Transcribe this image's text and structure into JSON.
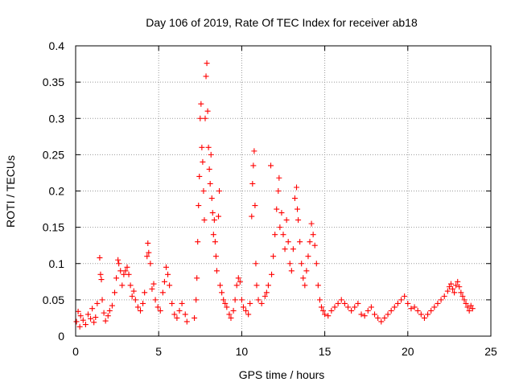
{
  "chart_data": {
    "type": "scatter",
    "title": "Day 106 of 2019, Rate Of TEC Index for receiver ab18",
    "xlabel": "GPS time / hours",
    "ylabel": "ROTI / TECUs",
    "xlim": [
      0,
      25
    ],
    "ylim": [
      0,
      0.4
    ],
    "xticks": [
      0,
      5,
      10,
      15,
      20,
      25
    ],
    "xtick_labels": [
      "0",
      "5",
      "10",
      "15",
      "20",
      "25"
    ],
    "yticks": [
      0,
      0.05,
      0.1,
      0.15,
      0.2,
      0.25,
      0.3,
      0.35,
      0.4
    ],
    "ytick_labels": [
      "0",
      "0.05",
      "0.1",
      "0.15",
      "0.2",
      "0.25",
      "0.3",
      "0.35",
      "0.4"
    ],
    "grid": true,
    "grid_style": "dotted",
    "marker": "+",
    "marker_color": "#ff0000",
    "series": [
      {
        "points": [
          [
            0.05,
            0.02
          ],
          [
            0.15,
            0.034
          ],
          [
            0.25,
            0.013
          ],
          [
            0.3,
            0.028
          ],
          [
            0.45,
            0.022
          ],
          [
            0.6,
            0.016
          ],
          [
            0.75,
            0.03
          ],
          [
            0.9,
            0.024
          ],
          [
            1.0,
            0.038
          ],
          [
            1.1,
            0.019
          ],
          [
            1.2,
            0.026
          ],
          [
            1.3,
            0.045
          ],
          [
            1.45,
            0.108
          ],
          [
            1.5,
            0.085
          ],
          [
            1.55,
            0.078
          ],
          [
            1.6,
            0.05
          ],
          [
            1.7,
            0.032
          ],
          [
            1.8,
            0.021
          ],
          [
            1.95,
            0.028
          ],
          [
            2.05,
            0.035
          ],
          [
            2.2,
            0.042
          ],
          [
            2.35,
            0.06
          ],
          [
            2.45,
            0.08
          ],
          [
            2.55,
            0.105
          ],
          [
            2.6,
            0.1
          ],
          [
            2.7,
            0.09
          ],
          [
            2.8,
            0.07
          ],
          [
            2.9,
            0.085
          ],
          [
            3.0,
            0.09
          ],
          [
            3.1,
            0.095
          ],
          [
            3.2,
            0.085
          ],
          [
            3.3,
            0.07
          ],
          [
            3.4,
            0.055
          ],
          [
            3.5,
            0.062
          ],
          [
            3.6,
            0.05
          ],
          [
            3.75,
            0.04
          ],
          [
            3.9,
            0.035
          ],
          [
            4.05,
            0.045
          ],
          [
            4.15,
            0.06
          ],
          [
            4.3,
            0.11
          ],
          [
            4.35,
            0.128
          ],
          [
            4.4,
            0.115
          ],
          [
            4.5,
            0.1
          ],
          [
            4.6,
            0.065
          ],
          [
            4.7,
            0.072
          ],
          [
            4.8,
            0.05
          ],
          [
            4.95,
            0.04
          ],
          [
            5.1,
            0.035
          ],
          [
            5.25,
            0.06
          ],
          [
            5.35,
            0.075
          ],
          [
            5.45,
            0.095
          ],
          [
            5.55,
            0.085
          ],
          [
            5.65,
            0.07
          ],
          [
            5.8,
            0.045
          ],
          [
            5.95,
            0.03
          ],
          [
            6.1,
            0.025
          ],
          [
            6.25,
            0.035
          ],
          [
            6.4,
            0.045
          ],
          [
            6.6,
            0.03
          ],
          [
            6.7,
            0.02
          ],
          [
            7.15,
            0.025
          ],
          [
            7.25,
            0.05
          ],
          [
            7.3,
            0.08
          ],
          [
            7.35,
            0.13
          ],
          [
            7.4,
            0.18
          ],
          [
            7.45,
            0.22
          ],
          [
            7.5,
            0.3
          ],
          [
            7.55,
            0.32
          ],
          [
            7.6,
            0.26
          ],
          [
            7.65,
            0.24
          ],
          [
            7.7,
            0.2
          ],
          [
            7.75,
            0.16
          ],
          [
            7.8,
            0.3
          ],
          [
            7.85,
            0.358
          ],
          [
            7.9,
            0.376
          ],
          [
            7.95,
            0.31
          ],
          [
            8.0,
            0.26
          ],
          [
            8.05,
            0.23
          ],
          [
            8.1,
            0.21
          ],
          [
            8.15,
            0.25
          ],
          [
            8.2,
            0.19
          ],
          [
            8.25,
            0.17
          ],
          [
            8.3,
            0.14
          ],
          [
            8.35,
            0.16
          ],
          [
            8.4,
            0.13
          ],
          [
            8.45,
            0.11
          ],
          [
            8.5,
            0.09
          ],
          [
            8.6,
            0.165
          ],
          [
            8.65,
            0.2
          ],
          [
            8.7,
            0.07
          ],
          [
            8.8,
            0.06
          ],
          [
            8.9,
            0.05
          ],
          [
            9.0,
            0.045
          ],
          [
            9.1,
            0.04
          ],
          [
            9.25,
            0.03
          ],
          [
            9.35,
            0.025
          ],
          [
            9.5,
            0.035
          ],
          [
            9.6,
            0.05
          ],
          [
            9.7,
            0.07
          ],
          [
            9.8,
            0.08
          ],
          [
            9.9,
            0.075
          ],
          [
            10.0,
            0.05
          ],
          [
            10.1,
            0.04
          ],
          [
            10.25,
            0.035
          ],
          [
            10.4,
            0.03
          ],
          [
            10.5,
            0.045
          ],
          [
            10.6,
            0.165
          ],
          [
            10.65,
            0.21
          ],
          [
            10.7,
            0.235
          ],
          [
            10.75,
            0.255
          ],
          [
            10.8,
            0.18
          ],
          [
            10.85,
            0.1
          ],
          [
            10.9,
            0.07
          ],
          [
            11.0,
            0.05
          ],
          [
            11.2,
            0.045
          ],
          [
            11.4,
            0.055
          ],
          [
            11.5,
            0.06
          ],
          [
            11.6,
            0.07
          ],
          [
            11.75,
            0.235
          ],
          [
            11.8,
            0.085
          ],
          [
            11.9,
            0.11
          ],
          [
            12.0,
            0.14
          ],
          [
            12.1,
            0.175
          ],
          [
            12.2,
            0.2
          ],
          [
            12.25,
            0.218
          ],
          [
            12.3,
            0.15
          ],
          [
            12.4,
            0.17
          ],
          [
            12.5,
            0.14
          ],
          [
            12.6,
            0.12
          ],
          [
            12.7,
            0.16
          ],
          [
            12.8,
            0.13
          ],
          [
            12.9,
            0.1
          ],
          [
            13.0,
            0.09
          ],
          [
            13.1,
            0.12
          ],
          [
            13.2,
            0.19
          ],
          [
            13.3,
            0.205
          ],
          [
            13.35,
            0.175
          ],
          [
            13.4,
            0.16
          ],
          [
            13.5,
            0.13
          ],
          [
            13.6,
            0.1
          ],
          [
            13.7,
            0.08
          ],
          [
            13.8,
            0.07
          ],
          [
            13.9,
            0.09
          ],
          [
            14.0,
            0.11
          ],
          [
            14.1,
            0.13
          ],
          [
            14.2,
            0.155
          ],
          [
            14.3,
            0.14
          ],
          [
            14.4,
            0.125
          ],
          [
            14.5,
            0.1
          ],
          [
            14.6,
            0.07
          ],
          [
            14.7,
            0.05
          ],
          [
            14.8,
            0.04
          ],
          [
            14.9,
            0.035
          ],
          [
            15.0,
            0.03
          ],
          [
            15.2,
            0.028
          ],
          [
            15.4,
            0.035
          ],
          [
            15.6,
            0.04
          ],
          [
            15.8,
            0.045
          ],
          [
            16.0,
            0.05
          ],
          [
            16.2,
            0.045
          ],
          [
            16.4,
            0.04
          ],
          [
            16.6,
            0.035
          ],
          [
            16.8,
            0.04
          ],
          [
            17.0,
            0.045
          ],
          [
            17.2,
            0.03
          ],
          [
            17.4,
            0.028
          ],
          [
            17.6,
            0.035
          ],
          [
            17.8,
            0.04
          ],
          [
            18.0,
            0.03
          ],
          [
            18.2,
            0.025
          ],
          [
            18.4,
            0.02
          ],
          [
            18.6,
            0.025
          ],
          [
            18.8,
            0.03
          ],
          [
            19.0,
            0.035
          ],
          [
            19.2,
            0.04
          ],
          [
            19.4,
            0.045
          ],
          [
            19.6,
            0.05
          ],
          [
            19.8,
            0.055
          ],
          [
            20.0,
            0.045
          ],
          [
            20.2,
            0.038
          ],
          [
            20.4,
            0.04
          ],
          [
            20.6,
            0.035
          ],
          [
            20.8,
            0.03
          ],
          [
            21.0,
            0.025
          ],
          [
            21.2,
            0.03
          ],
          [
            21.4,
            0.035
          ],
          [
            21.6,
            0.04
          ],
          [
            21.8,
            0.045
          ],
          [
            22.0,
            0.05
          ],
          [
            22.2,
            0.055
          ],
          [
            22.4,
            0.062
          ],
          [
            22.5,
            0.068
          ],
          [
            22.6,
            0.072
          ],
          [
            22.7,
            0.065
          ],
          [
            22.8,
            0.06
          ],
          [
            22.9,
            0.07
          ],
          [
            23.0,
            0.075
          ],
          [
            23.1,
            0.068
          ],
          [
            23.2,
            0.06
          ],
          [
            23.3,
            0.055
          ],
          [
            23.4,
            0.05
          ],
          [
            23.5,
            0.045
          ],
          [
            23.6,
            0.04
          ],
          [
            23.7,
            0.035
          ],
          [
            23.8,
            0.042
          ],
          [
            23.9,
            0.038
          ]
        ]
      }
    ]
  }
}
